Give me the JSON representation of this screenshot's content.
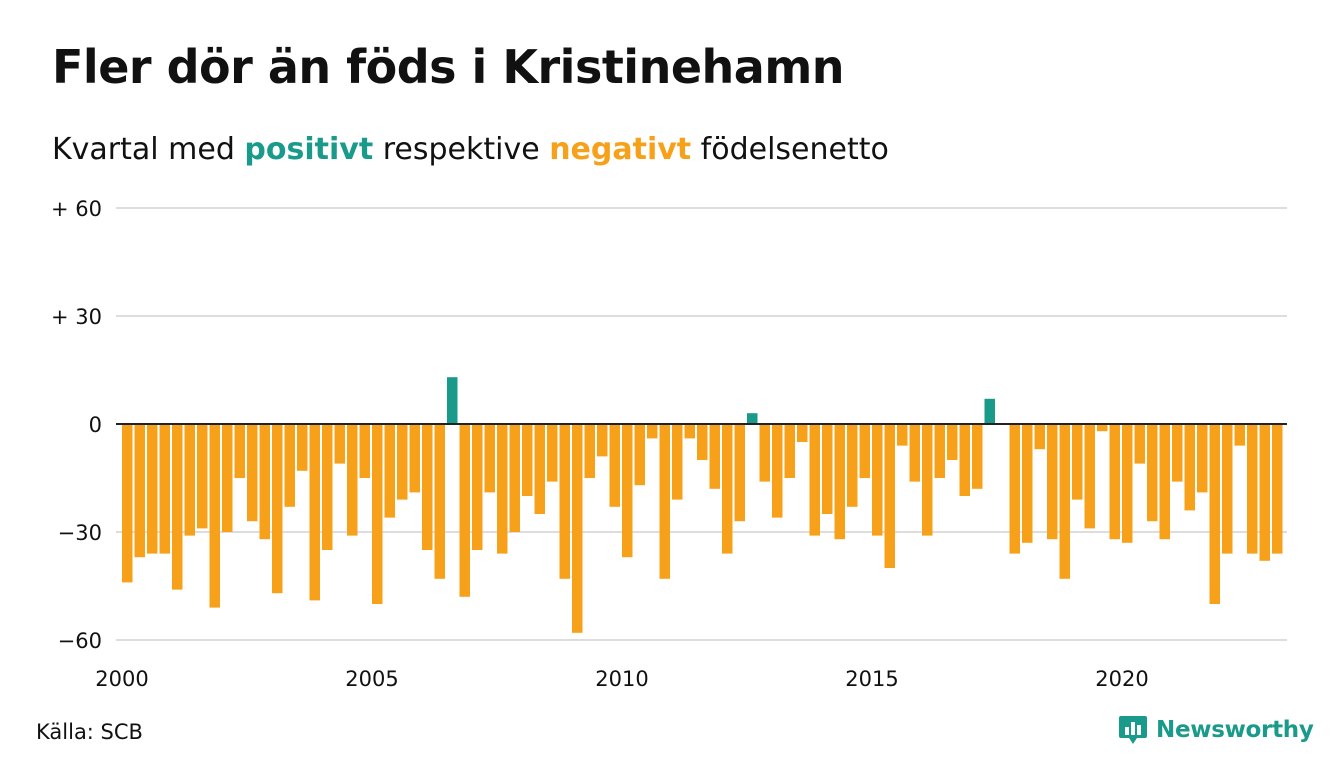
{
  "title": "Fler dör än föds i Kristinehamn",
  "subtitle": {
    "prefix": "Kvartal med ",
    "positive": "positivt",
    "middle": " respektive ",
    "negative": "negativt",
    "suffix": " födelsenetto"
  },
  "source": "Källa: SCB",
  "brand": "Newsworthy",
  "colors": {
    "positive": "#1a9a8a",
    "negative": "#f7a11a",
    "grid": "#dddddd",
    "baseline": "#222222",
    "text": "#111111"
  },
  "chart_data": {
    "type": "bar",
    "x_start": "2000 Q1",
    "x_ticks": [
      "2000",
      "2005",
      "2010",
      "2015",
      "2020"
    ],
    "y_ticks": [
      "+ 60",
      "+ 30",
      "0",
      "−30",
      "−60"
    ],
    "y_tick_values": [
      60,
      30,
      0,
      -30,
      -60
    ],
    "ylim": [
      -60,
      60
    ],
    "grid": true,
    "values": [
      -44,
      -37,
      -36,
      -36,
      -46,
      -31,
      -29,
      -51,
      -30,
      -15,
      -27,
      -32,
      -47,
      -23,
      -13,
      -49,
      -35,
      -11,
      -31,
      -15,
      -50,
      -26,
      -21,
      -19,
      -35,
      -43,
      13,
      -48,
      -35,
      -19,
      -36,
      -30,
      -20,
      -25,
      -16,
      -43,
      -58,
      -15,
      -9,
      -23,
      -37,
      -17,
      -4,
      -43,
      -21,
      -4,
      -10,
      -18,
      -36,
      -27,
      3,
      -16,
      -26,
      -15,
      -5,
      -31,
      -25,
      -32,
      -23,
      -15,
      -31,
      -40,
      -6,
      -16,
      -31,
      -15,
      -10,
      -20,
      -18,
      7,
      0,
      -36,
      -33,
      -7,
      -32,
      -43,
      -21,
      -29,
      -2,
      -32,
      -33,
      -11,
      -27,
      -32,
      -16,
      -24,
      -19,
      -50,
      -36,
      -6,
      -36,
      -38,
      -36
    ]
  }
}
